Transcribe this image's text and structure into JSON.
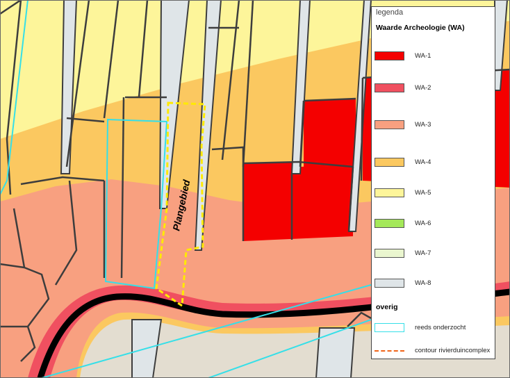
{
  "map": {
    "label": "Plangebied",
    "colors": {
      "WA-1": "#f40000",
      "WA-2": "#f05060",
      "WA-3": "#f8a080",
      "WA-4": "#fbc860",
      "WA-5": "#fdf59a",
      "WA-8": "#dfe5e8",
      "plan_outline": "#ffea00",
      "surveyed": "#35dfe8",
      "parcel_line": "#3d3d3d"
    }
  },
  "legend": {
    "title": "legenda",
    "subtitle": "Waarde Archeologie (WA)",
    "items": [
      {
        "label": "WA-1",
        "color": "#f40000"
      },
      {
        "label": "WA-2",
        "color": "#f05060"
      },
      {
        "label": "WA-3",
        "color": "#f8a080"
      },
      {
        "label": "WA-4",
        "color": "#fbc860"
      },
      {
        "label": "WA-5",
        "color": "#fdf59a"
      },
      {
        "label": "WA-6",
        "color": "#a4e85a"
      },
      {
        "label": "WA-7",
        "color": "#eaf6cf"
      },
      {
        "label": "WA-8",
        "color": "#dfe5e8"
      }
    ],
    "other_heading": "overig",
    "other_items": [
      {
        "label": "reeds onderzocht",
        "color": "#35dfe8"
      },
      {
        "label": "contour rivierduincomplex",
        "color": "#f06418"
      }
    ]
  }
}
